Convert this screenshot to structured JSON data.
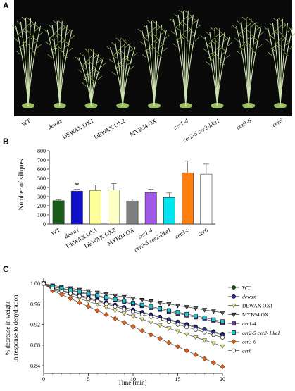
{
  "panel_labels": [
    "A",
    "B",
    "C"
  ],
  "photo": {
    "labels": [
      {
        "text": "WT",
        "italic": false
      },
      {
        "text": "dewax",
        "italic": true
      },
      {
        "text": "DEWAX OX1",
        "italic": false
      },
      {
        "text": "DEWAX OX2",
        "italic": false
      },
      {
        "text": "MYB94 OX",
        "italic": false
      },
      {
        "text": "cer1-4",
        "italic": true
      },
      {
        "text": "cer2-5 cer2-like1",
        "italic": true
      },
      {
        "text": "cer3-6",
        "italic": true
      },
      {
        "text": "cer6",
        "italic": true
      }
    ],
    "colors": {
      "background": "#0a0a0a",
      "plant": "#9bbf62",
      "stem": "#cfe3b0"
    }
  },
  "chart_data": [
    {
      "type": "bar",
      "title": "",
      "xlabel": "",
      "ylabel": "Number of siliques",
      "ylim": [
        0,
        800
      ],
      "yticks": [
        "0",
        "100",
        "200",
        "300",
        "400",
        "500",
        "600",
        "700",
        "800"
      ],
      "grid": false,
      "categories": [
        "WT",
        "dewax",
        "DEWAX OX1",
        "DEWAX OX2",
        "MYB94 OX",
        "cer1-4",
        "cer2-5 cer2-like1",
        "cer3-6",
        "cer6"
      ],
      "italic_categories": [
        false,
        true,
        false,
        false,
        false,
        true,
        true,
        true,
        true
      ],
      "values": [
        255,
        360,
        368,
        372,
        252,
        345,
        290,
        560,
        545
      ],
      "errors": [
        10,
        20,
        60,
        70,
        20,
        35,
        50,
        130,
        110
      ],
      "colors": [
        "#1a5c1a",
        "#1010c8",
        "#ffff99",
        "#ffffc8",
        "#7f7f7f",
        "#a05ae6",
        "#00e6f0",
        "#ff7f0e",
        "#ffffff"
      ],
      "annotations": [
        {
          "category": "dewax",
          "text": "*"
        }
      ]
    },
    {
      "type": "line",
      "title": "",
      "xlabel": "Time (min)",
      "ylabel": "% decrease in weight in response to dehydration",
      "ylabel_lines": [
        "% decrease in weight",
        "in response to dehydration"
      ],
      "xlim": [
        0,
        20
      ],
      "ylim": [
        0.825,
        1.01
      ],
      "xticks": [
        "0",
        "5",
        "10",
        "15",
        "20"
      ],
      "yticks": [
        "0.84",
        "0.88",
        "0.92",
        "0.96",
        "1.00"
      ],
      "grid": false,
      "legend_position": "right",
      "x": [
        0,
        1,
        2,
        3,
        4,
        5,
        6,
        7,
        8,
        9,
        10,
        11,
        12,
        13,
        14,
        15,
        16,
        17,
        18,
        19,
        20
      ],
      "series": [
        {
          "name": "WT",
          "italic": false,
          "marker": "circle",
          "fill": "#1a5c1a",
          "stroke": "#000000",
          "slope": -0.0047,
          "noise": -0.004
        },
        {
          "name": "dewax",
          "italic": true,
          "marker": "circle",
          "fill": "#2a2ab4",
          "stroke": "#000000",
          "slope": -0.0048,
          "noise": -0.004
        },
        {
          "name": "DEWAX OX1",
          "italic": false,
          "marker": "triangle-down",
          "fill": "#e8e870",
          "stroke": "#555555",
          "slope": -0.0058,
          "noise": -0.006
        },
        {
          "name": "MYB94 OX",
          "italic": false,
          "marker": "triangle-down",
          "fill": "#5a5a5a",
          "stroke": "#000000",
          "slope": -0.0028,
          "noise": -0.001
        },
        {
          "name": "cer1-4",
          "italic": true,
          "marker": "square",
          "fill": "#7030a0",
          "stroke": "#000000",
          "slope": -0.0037,
          "noise": -0.003
        },
        {
          "name": "cer2-5 cer2- like1",
          "italic": true,
          "marker": "square",
          "fill": "#1ec8d2",
          "stroke": "#000000",
          "slope": -0.0036,
          "noise": -0.002
        },
        {
          "name": "cer3-6",
          "italic": true,
          "marker": "diamond",
          "fill": "#e06020",
          "stroke": "#7a3000",
          "slope": -0.0078,
          "noise": -0.006
        },
        {
          "name": "cer6",
          "italic": true,
          "marker": "circle",
          "fill": "#ffffff",
          "stroke": "#000000",
          "slope": -0.005,
          "noise": -0.005
        }
      ]
    }
  ]
}
